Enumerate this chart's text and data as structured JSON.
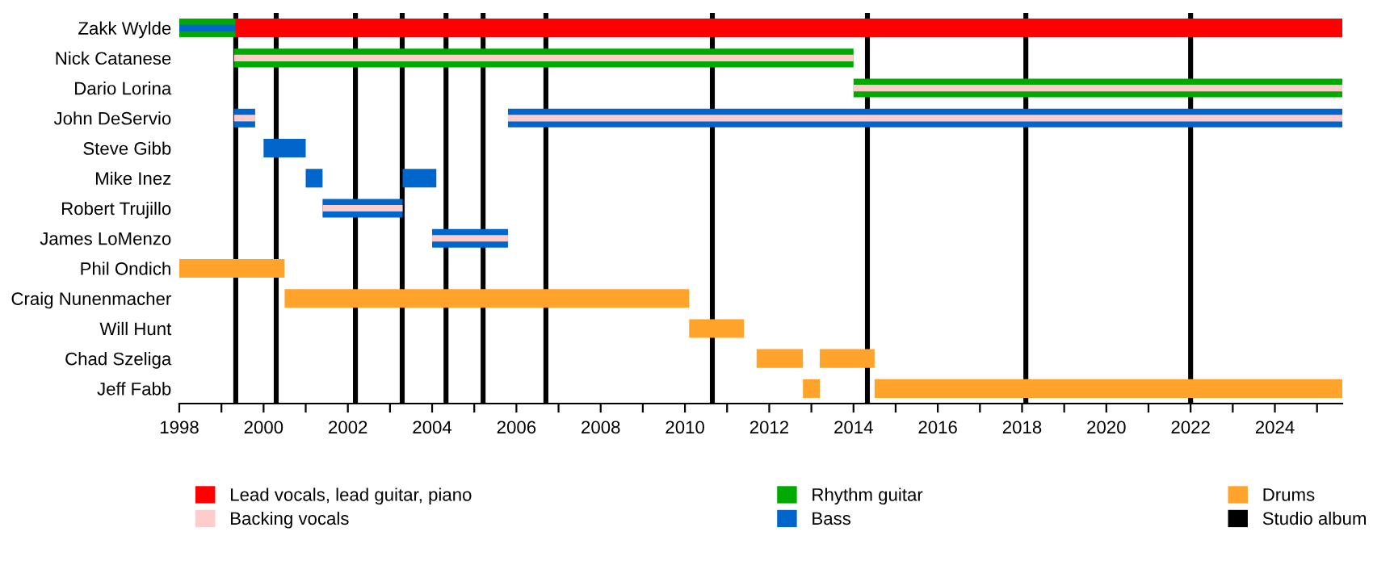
{
  "chart_data": {
    "type": "bar",
    "orientation": "horizontal",
    "categories": [
      "Zakk Wylde",
      "Nick Catanese",
      "Dario Lorina",
      "John DeServio",
      "Steve Gibb",
      "Mike Inez",
      "Robert Trujillo",
      "James LoMenzo",
      "Phil Ondich",
      "Craig Nunenmacher",
      "Will Hunt",
      "Chad Szeliga",
      "Jeff Fabb"
    ],
    "series": [
      {
        "name": "Lead vocals, lead guitar, piano",
        "color": "#ff0000",
        "base": [
          1999.34,
          null,
          null,
          null,
          null,
          null,
          null,
          null,
          null,
          null,
          null,
          null,
          null
        ],
        "values": [
          26.26,
          null,
          null,
          null,
          null,
          null,
          null,
          null,
          null,
          null,
          null,
          null,
          null
        ]
      },
      {
        "name": "Rhythm guitar",
        "color": "#00aa00",
        "base": [
          1998,
          1999.3,
          2014.0,
          null,
          null,
          null,
          null,
          null,
          null,
          null,
          null,
          null,
          null
        ],
        "values": [
          1.34,
          14.7,
          11.6,
          null,
          null,
          null,
          null,
          null,
          null,
          null,
          null,
          null,
          null
        ]
      },
      {
        "name": "Bass",
        "color": "#0066cc",
        "base": [
          1998,
          null,
          null,
          1999.3,
          2000.0,
          2001.0,
          2001.4,
          2004.0,
          null,
          null,
          null,
          null,
          null
        ],
        "values": [
          1.34,
          null,
          null,
          0.5,
          1.0,
          0.4,
          1.9,
          1.8,
          null,
          null,
          null,
          null,
          null
        ]
      },
      {
        "color": "#0066cc",
        "base": [
          null,
          null,
          null,
          2005.8,
          null,
          2003.3,
          null,
          null,
          null,
          null,
          null,
          null,
          null
        ],
        "values": [
          null,
          null,
          null,
          19.8,
          null,
          0.8,
          null,
          null,
          null,
          null,
          null,
          null,
          null
        ]
      },
      {
        "name": "Drums",
        "color": "#ffa32b",
        "base": [
          null,
          null,
          null,
          null,
          null,
          null,
          null,
          null,
          1998,
          2000.5,
          2010.1,
          2011.7,
          2012.8
        ],
        "values": [
          null,
          null,
          null,
          null,
          null,
          null,
          null,
          null,
          2.5,
          9.6,
          1.3,
          1.1,
          0.4
        ]
      },
      {
        "color": "#ffa32b",
        "base": [
          null,
          null,
          null,
          null,
          null,
          null,
          null,
          null,
          null,
          null,
          null,
          2013.2,
          2014.5
        ],
        "values": [
          null,
          null,
          null,
          null,
          null,
          null,
          null,
          null,
          null,
          null,
          null,
          1.3,
          11.1
        ]
      },
      {
        "name": "Backing vocals",
        "color": "#ffcccc",
        "base": [
          null,
          1999.3,
          2014.0,
          1999.3,
          null,
          null,
          2001.4,
          2004.0,
          null,
          null,
          null,
          null,
          null
        ],
        "values": [
          null,
          14.7,
          11.6,
          0.5,
          null,
          null,
          1.9,
          1.8,
          null,
          null,
          null,
          null,
          null
        ]
      },
      {
        "color": "#ffcccc",
        "base": [
          null,
          null,
          null,
          2005.8,
          null,
          null,
          null,
          null,
          null,
          null,
          null,
          null,
          null
        ],
        "values": [
          null,
          null,
          null,
          19.8,
          null,
          null,
          null,
          null,
          null,
          null,
          null,
          null,
          null
        ]
      }
    ],
    "ref_lines": [
      {
        "axis": "x",
        "value": 1999.34,
        "label": "Studio album",
        "color": "#000000"
      },
      {
        "axis": "x",
        "value": 2000.3,
        "color": "#000000"
      },
      {
        "axis": "x",
        "value": 2002.18,
        "color": "#000000"
      },
      {
        "axis": "x",
        "value": 2003.29,
        "color": "#000000"
      },
      {
        "axis": "x",
        "value": 2004.33,
        "color": "#000000"
      },
      {
        "axis": "x",
        "value": 2005.21,
        "color": "#000000"
      },
      {
        "axis": "x",
        "value": 2006.7,
        "color": "#000000"
      },
      {
        "axis": "x",
        "value": 2010.65,
        "color": "#000000"
      },
      {
        "axis": "x",
        "value": 2014.33,
        "color": "#000000"
      },
      {
        "axis": "x",
        "value": 2018.09,
        "color": "#000000"
      },
      {
        "axis": "x",
        "value": 2022.0,
        "color": "#000000"
      }
    ],
    "xlim": [
      1998,
      2025.6
    ],
    "xticks": [
      1998,
      {
        "value": 1999,
        "label": null
      },
      2000,
      {
        "value": 2001,
        "label": null
      },
      2002,
      {
        "value": 2003,
        "label": null
      },
      2004,
      {
        "value": 2005,
        "label": null
      },
      2006,
      {
        "value": 2007,
        "label": null
      },
      2008,
      {
        "value": 2009,
        "label": null
      },
      2010,
      {
        "value": 2011,
        "label": null
      },
      2012,
      {
        "value": 2013,
        "label": null
      },
      2014,
      {
        "value": 2015,
        "label": null
      },
      2016,
      {
        "value": 2017,
        "label": null
      },
      2018,
      {
        "value": 2019,
        "label": null
      },
      2020,
      {
        "value": 2021,
        "label": null
      },
      2022,
      {
        "value": 2023,
        "label": null
      },
      2024,
      {
        "value": 2025,
        "label": null
      }
    ],
    "grid": false,
    "legend": "bottom"
  }
}
